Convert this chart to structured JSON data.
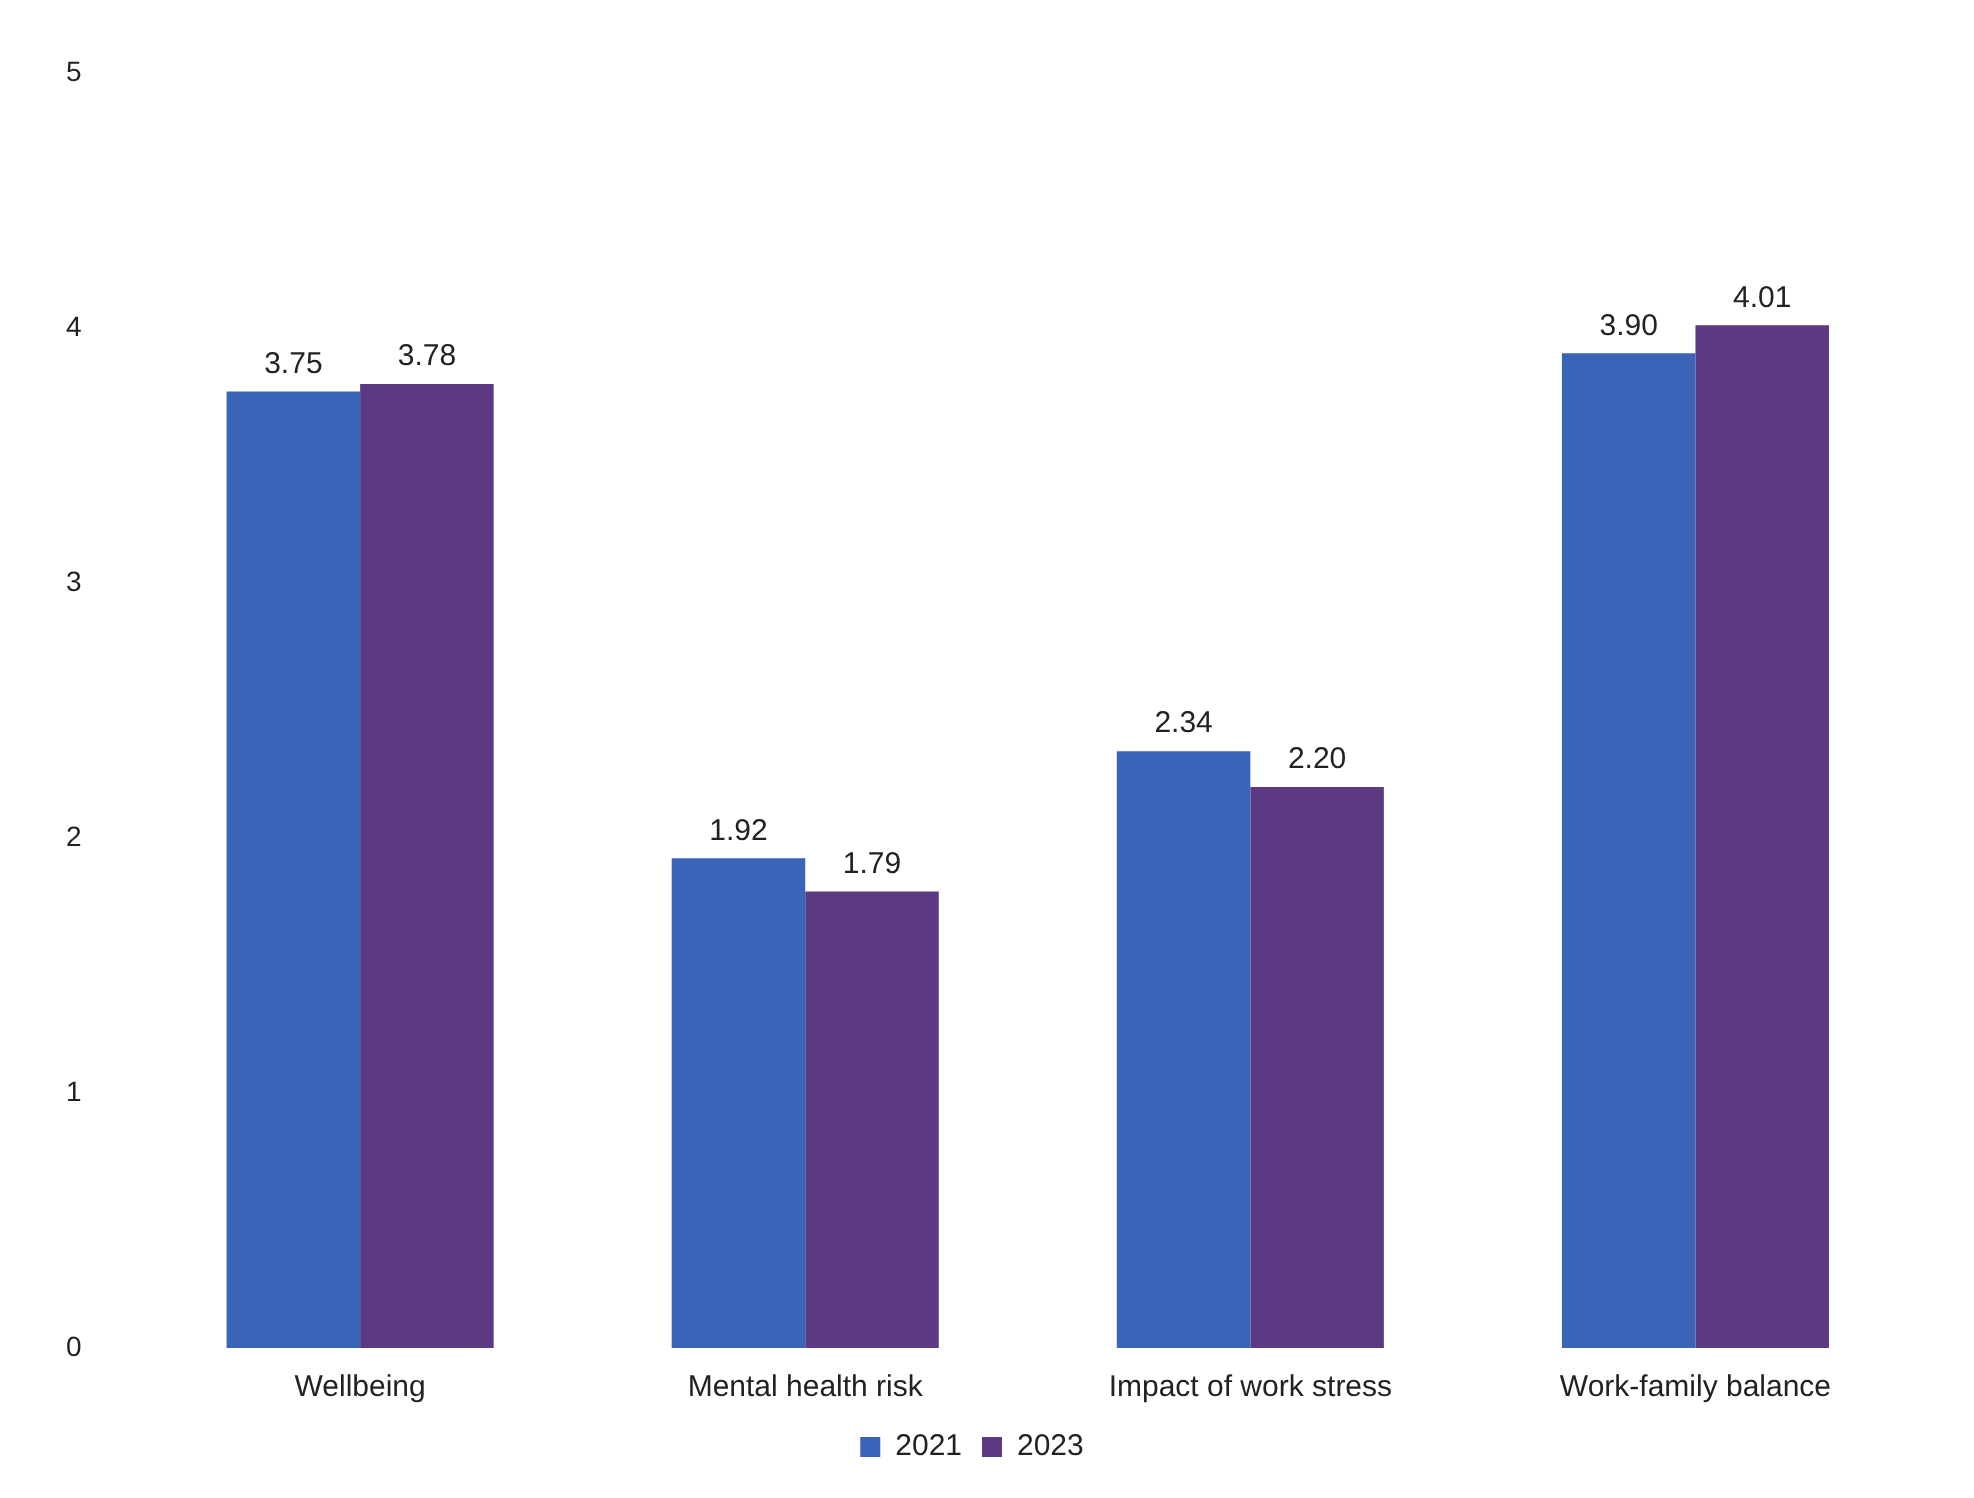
{
  "chart_data": {
    "type": "bar",
    "categories": [
      "Wellbeing",
      "Mental health risk",
      "Impact of work stress",
      "Work-family balance"
    ],
    "series": [
      {
        "name": "2021",
        "color": "#3a64b8",
        "values": [
          3.75,
          1.92,
          2.34,
          3.9
        ],
        "value_labels": [
          "3.75",
          "1.92",
          "2.34",
          "3.90"
        ]
      },
      {
        "name": "2023",
        "color": "#5c3a82",
        "values": [
          3.78,
          1.79,
          2.2,
          4.01
        ],
        "value_labels": [
          "3.78",
          "1.79",
          "2.20",
          "4.01"
        ]
      }
    ],
    "ylim": [
      0,
      5
    ],
    "yticks": [
      0,
      1,
      2,
      3,
      4,
      5
    ],
    "grid": false,
    "legend": "bottom"
  }
}
